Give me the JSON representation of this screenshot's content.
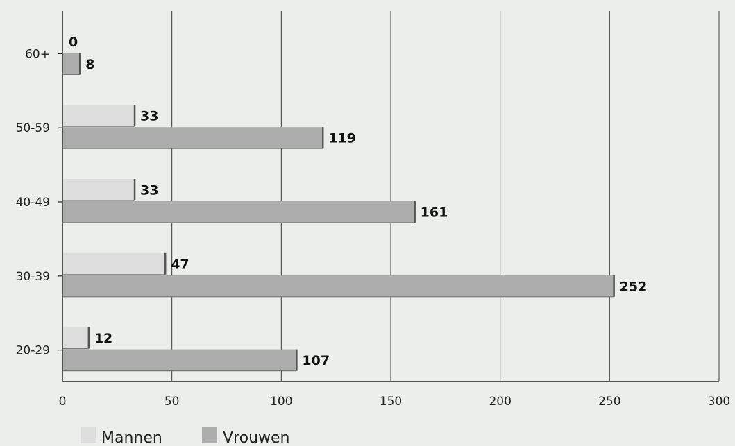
{
  "chart_data": {
    "type": "bar",
    "orientation": "horizontal",
    "categories": [
      "60+",
      "50-59",
      "40-49",
      "30-39",
      "20-29"
    ],
    "series": [
      {
        "name": "Mannen",
        "values": [
          0,
          33,
          33,
          47,
          12
        ],
        "color": "#dcdddc"
      },
      {
        "name": "Vrouwen",
        "values": [
          8,
          119,
          161,
          252,
          107
        ],
        "color": "#acadac"
      }
    ],
    "x_ticks": [
      "0",
      "50",
      "100",
      "150",
      "200",
      "250",
      "300"
    ],
    "xlim": [
      0,
      300
    ],
    "grid": true,
    "legend_position": "bottom-left",
    "data_labels": true,
    "title": "",
    "xlabel": "",
    "ylabel": ""
  }
}
